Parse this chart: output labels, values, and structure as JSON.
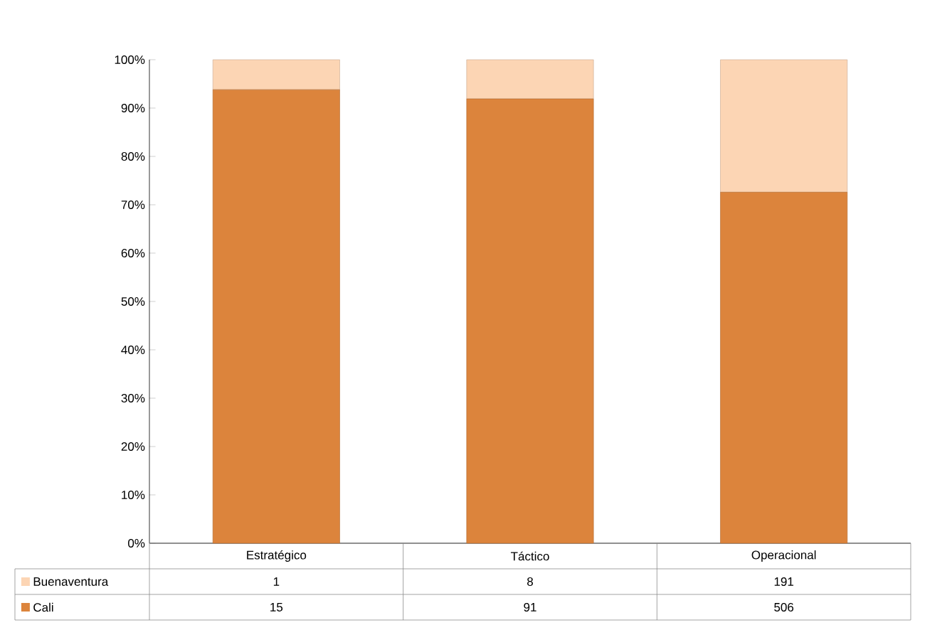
{
  "chart_data": {
    "type": "bar",
    "stacked": true,
    "categories": [
      "Estratégico",
      "Táctico",
      "Operacional"
    ],
    "series": [
      {
        "name": "Cali",
        "color": "#dc843c",
        "values": [
          93.8,
          91.9,
          72.6
        ]
      },
      {
        "name": "Buenaventura",
        "color": "#fcd5b4",
        "values": [
          6.2,
          8.1,
          27.4
        ]
      }
    ],
    "annotations": [
      "1",
      "8",
      "191",
      "15",
      "91",
      "506"
    ],
    "ylim": [
      0,
      100
    ],
    "yticks": [
      {
        "value": 0,
        "label": "0%"
      },
      {
        "value": 10,
        "label": "10%"
      },
      {
        "value": 20,
        "label": "20%"
      },
      {
        "value": 30,
        "label": "30%"
      },
      {
        "value": 40,
        "label": "40%"
      },
      {
        "value": 50,
        "label": "50%"
      },
      {
        "value": 60,
        "label": "60%"
      },
      {
        "value": 70,
        "label": "70%"
      },
      {
        "value": 80,
        "label": "80%"
      },
      {
        "value": 90,
        "label": "90%"
      },
      {
        "value": 100,
        "label": "100%"
      }
    ],
    "legend": "bottom left"
  }
}
